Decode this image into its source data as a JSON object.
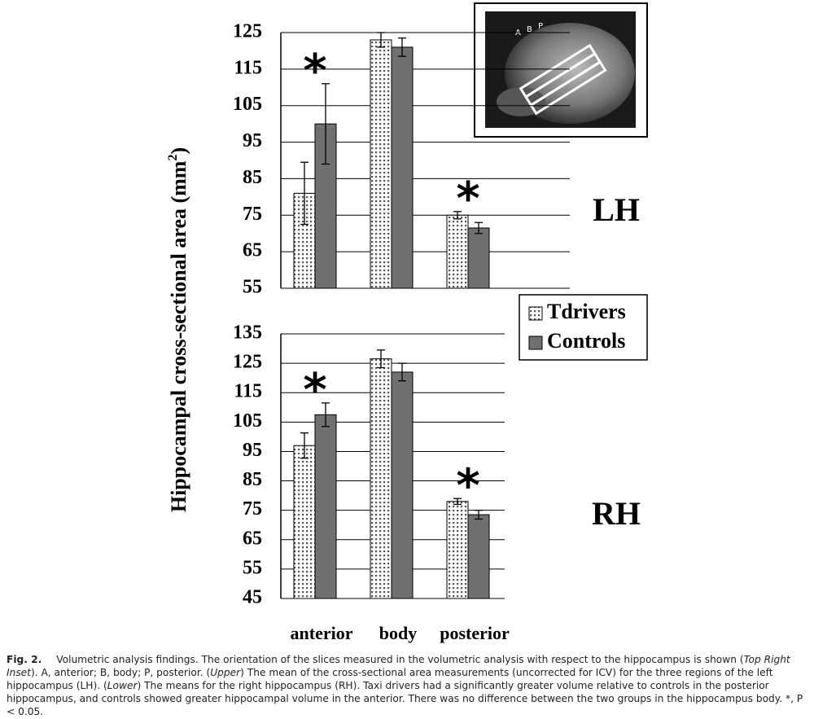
{
  "chart_data": [
    {
      "type": "bar",
      "label": "LH",
      "ylim": [
        55,
        125
      ],
      "yticks": [
        55,
        65,
        75,
        85,
        95,
        105,
        115,
        125
      ],
      "grid": true,
      "significance": [
        "*",
        null,
        "*"
      ],
      "series": [
        {
          "color": "#ffffff",
          "pattern": "dots",
          "values": [
            81,
            123,
            75
          ],
          "errors": [
            8.5,
            2,
            1
          ]
        },
        {
          "color": "#707070",
          "values": [
            100,
            121,
            71.5
          ],
          "errors": [
            11,
            2.5,
            1.5
          ]
        }
      ]
    },
    {
      "type": "bar",
      "label": "RH",
      "ylim": [
        45,
        135
      ],
      "yticks": [
        45,
        55,
        65,
        75,
        85,
        95,
        105,
        115,
        125,
        135
      ],
      "grid": true,
      "categories": [
        "anterior",
        "body",
        "posterior"
      ],
      "significance": [
        "*",
        null,
        "*"
      ],
      "series": [
        {
          "name": "Tdrivers",
          "color": "#ffffff",
          "pattern": "dots",
          "values": [
            97,
            126.5,
            78
          ],
          "errors": [
            4.3,
            3,
            1
          ]
        },
        {
          "name": "Controls",
          "color": "#707070",
          "values": [
            107.5,
            122,
            73.5
          ],
          "errors": [
            4,
            3,
            1.5
          ]
        }
      ]
    }
  ],
  "y_label": {
    "text": "Hippocampal cross-sectional area (mm",
    "superscript": "2",
    "suffix": ")"
  },
  "inset": {
    "labels": [
      "A",
      "B",
      "P"
    ]
  },
  "caption": {
    "label": "Fig. 2.",
    "parts": [
      {
        "text": "Volumetric analysis findings. The orientation of the slices measured in the volumetric analysis with respect to the hippocampus is shown ("
      },
      {
        "text": "Top Right Inset",
        "italic": true
      },
      {
        "text": "). A, anterior; B, body; P, posterior. ("
      },
      {
        "text": "Upper",
        "italic": true
      },
      {
        "text": ") The mean of the cross-sectional area measurements (uncorrected for ICV) for the three regions of the left hippocampus (LH). ("
      },
      {
        "text": "Lower",
        "italic": true
      },
      {
        "text": ") The means for the right hippocampus (RH). Taxi drivers had a significantly greater volume relative to controls in the posterior hippocampus, and controls showed greater hippocampal volume in the anterior. There was no difference between the two groups in the hippocampus body. *, P < 0.05."
      }
    ]
  }
}
